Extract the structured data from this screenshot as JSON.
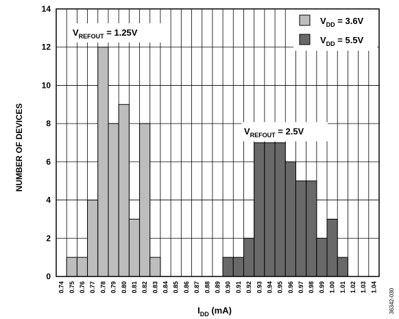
{
  "chart_data": {
    "type": "bar",
    "xlabel": {
      "main": "I",
      "sub": "DD",
      "rest": " (mA)"
    },
    "ylabel": "NUMBER OF DEVICES",
    "ylim": [
      0,
      14
    ],
    "yticks": [
      0,
      2,
      4,
      6,
      8,
      10,
      12,
      14
    ],
    "grid": true,
    "legend_placement": "top-right",
    "categories": [
      "0.74",
      "0.75",
      "0.76",
      "0.77",
      "0.78",
      "0.79",
      "0.80",
      "0.81",
      "0.82",
      "0.83",
      "0.84",
      "0.85",
      "0.86",
      "0.87",
      "0.88",
      "0.89",
      "0.90",
      "0.91",
      "0.92",
      "0.93",
      "0.94",
      "0.95",
      "0.96",
      "0.97",
      "0.98",
      "0.99",
      "1.00",
      "1.01",
      "1.02",
      "1.03",
      "1.04"
    ],
    "series": [
      {
        "name": "3.6V",
        "legend_main": "V",
        "legend_sub": "DD",
        "legend_rest": " = 3.6V",
        "color": "#bdbdbd",
        "values": [
          0,
          1,
          1,
          4,
          12,
          8,
          9,
          3,
          8,
          1,
          0,
          0,
          0,
          0,
          0,
          0,
          0,
          0,
          0,
          0,
          0,
          0,
          0,
          0,
          0,
          0,
          0,
          0,
          0,
          0,
          0
        ]
      },
      {
        "name": "5.5V",
        "legend_main": "V",
        "legend_sub": "DD",
        "legend_rest": " = 5.5V",
        "color": "#696969",
        "values": [
          0,
          0,
          0,
          0,
          0,
          0,
          0,
          0,
          0,
          0,
          0,
          0,
          0,
          0,
          0,
          0,
          1,
          1,
          2,
          7,
          7,
          7,
          6,
          5,
          5,
          2,
          3,
          1,
          0,
          0,
          0
        ]
      }
    ],
    "annotations": [
      {
        "main": "V",
        "sub": "REFOUT",
        "rest": " = 1.25V"
      },
      {
        "main": "V",
        "sub": "REFOUT",
        "rest": " = 2.5V"
      }
    ],
    "figure_id": "36342-030"
  }
}
